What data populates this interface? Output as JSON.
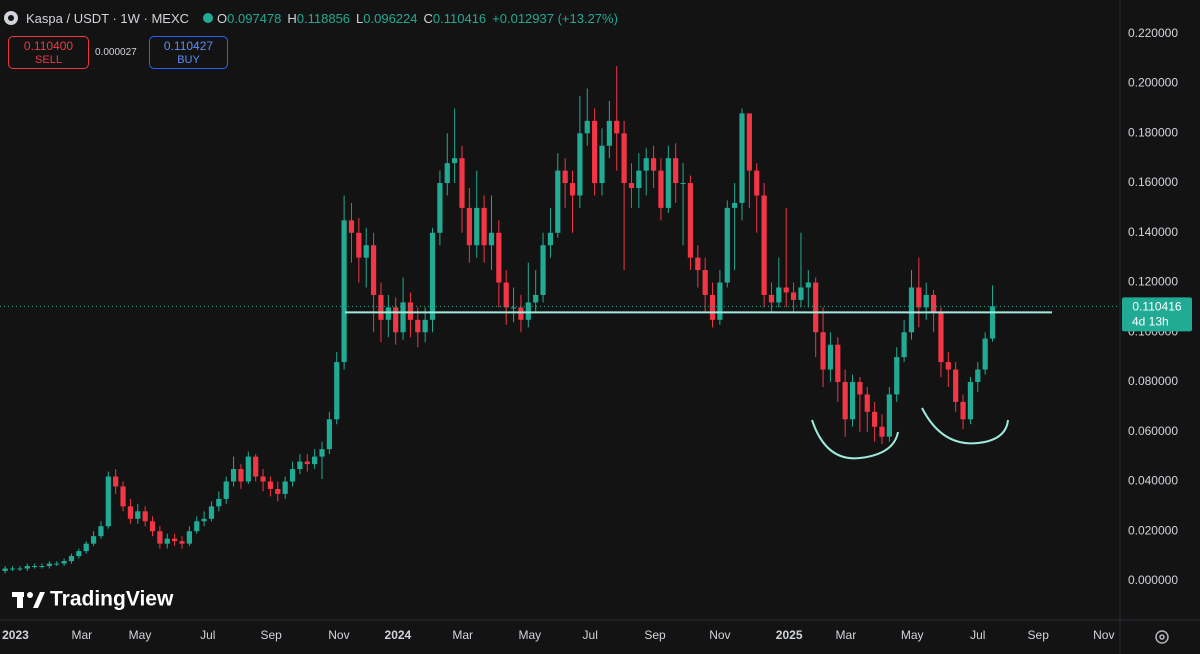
{
  "header": {
    "symbol": "Kaspa / USDT · 1W · MEXC",
    "o_label": "O",
    "h_label": "H",
    "l_label": "L",
    "c_label": "C",
    "change": "+0.012937 (+13.27%)"
  },
  "trade": {
    "sell_price": "0.110400",
    "sell_label": "SELL",
    "spread": "0.000027",
    "buy_price": "0.110427",
    "buy_label": "BUY"
  },
  "countdown": "4d 13h",
  "watermark": "TradingView",
  "chart_data": {
    "type": "candlestick",
    "up_color": "#22ab94",
    "down_color": "#f23645",
    "grid": false,
    "support_level": 0.108,
    "ylim": [
      -0.0157,
      0.2336
    ],
    "yticks": [
      {
        "value": 0,
        "label": "0.000000"
      },
      {
        "value": 0.02,
        "label": "0.020000"
      },
      {
        "value": 0.04,
        "label": "0.040000"
      },
      {
        "value": 0.06,
        "label": "0.060000"
      },
      {
        "value": 0.08,
        "label": "0.080000"
      },
      {
        "value": 0.1,
        "label": "0.100000"
      },
      {
        "value": 0.12,
        "label": "0.120000"
      },
      {
        "value": 0.14,
        "label": "0.140000"
      },
      {
        "value": 0.16,
        "label": "0.160000"
      },
      {
        "value": 0.18,
        "label": "0.180000"
      },
      {
        "value": 0.2,
        "label": "0.200000"
      },
      {
        "value": 0.22,
        "label": "0.220000"
      }
    ],
    "xlim": [
      -0.7,
      151.3
    ],
    "xticks": [
      {
        "value": 1.4,
        "label": "2023"
      },
      {
        "value": 10.4,
        "label": "Mar"
      },
      {
        "value": 18.3,
        "label": "May"
      },
      {
        "value": 27.5,
        "label": "Jul"
      },
      {
        "value": 36.1,
        "label": "Sep"
      },
      {
        "value": 45.3,
        "label": "Nov"
      },
      {
        "value": 53.3,
        "label": "2024"
      },
      {
        "value": 62.1,
        "label": "Mar"
      },
      {
        "value": 71.2,
        "label": "May"
      },
      {
        "value": 79.4,
        "label": "Jul"
      },
      {
        "value": 88.2,
        "label": "Sep"
      },
      {
        "value": 97.0,
        "label": "Nov"
      },
      {
        "value": 106.4,
        "label": "2025"
      },
      {
        "value": 114.1,
        "label": "Mar"
      },
      {
        "value": 123.1,
        "label": "May"
      },
      {
        "value": 132.0,
        "label": "Jul"
      },
      {
        "value": 140.2,
        "label": "Sep"
      },
      {
        "value": 149.1,
        "label": "Nov"
      }
    ],
    "open": [
      0.004,
      0.005,
      0.005,
      0.005,
      0.006,
      0.006,
      0.006,
      0.007,
      0.007,
      0.008,
      0.01,
      0.012,
      0.015,
      0.018,
      0.022,
      0.042,
      0.038,
      0.03,
      0.025,
      0.028,
      0.024,
      0.02,
      0.015,
      0.017,
      0.016,
      0.015,
      0.02,
      0.024,
      0.025,
      0.03,
      0.033,
      0.04,
      0.045,
      0.04,
      0.05,
      0.042,
      0.04,
      0.037,
      0.035,
      0.04,
      0.045,
      0.048,
      0.047,
      0.05,
      0.053,
      0.065,
      0.088,
      0.145,
      0.14,
      0.13,
      0.135,
      0.115,
      0.105,
      0.11,
      0.1,
      0.112,
      0.105,
      0.1,
      0.105,
      0.14,
      0.16,
      0.168,
      0.17,
      0.15,
      0.135,
      0.15,
      0.135,
      0.14,
      0.12,
      0.11,
      0.11,
      0.105,
      0.112,
      0.115,
      0.135,
      0.14,
      0.165,
      0.16,
      0.155,
      0.18,
      0.185,
      0.16,
      0.175,
      0.185,
      0.18,
      0.16,
      0.158,
      0.165,
      0.17,
      0.165,
      0.15,
      0.17,
      0.16,
      0.16,
      0.13,
      0.125,
      0.115,
      0.105,
      0.12,
      0.15,
      0.152,
      0.188,
      0.165,
      0.155,
      0.115,
      0.112,
      0.118,
      0.116,
      0.113,
      0.118,
      0.12,
      0.1,
      0.085,
      0.095,
      0.08,
      0.065,
      0.08,
      0.075,
      0.068,
      0.062,
      0.058,
      0.075,
      0.09,
      0.1,
      0.118,
      0.11,
      0.115,
      0.108,
      0.088,
      0.085,
      0.072,
      0.065,
      0.08,
      0.085,
      0.097478
    ],
    "high": [
      0.006,
      0.006,
      0.006,
      0.007,
      0.007,
      0.007,
      0.008,
      0.008,
      0.009,
      0.011,
      0.013,
      0.016,
      0.02,
      0.024,
      0.044,
      0.045,
      0.04,
      0.033,
      0.031,
      0.03,
      0.026,
      0.022,
      0.019,
      0.019,
      0.018,
      0.022,
      0.026,
      0.028,
      0.032,
      0.036,
      0.042,
      0.05,
      0.047,
      0.052,
      0.051,
      0.045,
      0.042,
      0.04,
      0.042,
      0.048,
      0.051,
      0.051,
      0.053,
      0.056,
      0.068,
      0.092,
      0.155,
      0.152,
      0.146,
      0.142,
      0.14,
      0.12,
      0.115,
      0.114,
      0.122,
      0.116,
      0.11,
      0.11,
      0.142,
      0.165,
      0.18,
      0.19,
      0.175,
      0.158,
      0.165,
      0.155,
      0.155,
      0.145,
      0.125,
      0.118,
      0.115,
      0.128,
      0.125,
      0.14,
      0.15,
      0.172,
      0.17,
      0.165,
      0.195,
      0.198,
      0.19,
      0.182,
      0.193,
      0.207,
      0.185,
      0.168,
      0.172,
      0.174,
      0.175,
      0.17,
      0.175,
      0.176,
      0.168,
      0.163,
      0.135,
      0.13,
      0.12,
      0.125,
      0.153,
      0.16,
      0.19,
      0.188,
      0.168,
      0.16,
      0.12,
      0.13,
      0.15,
      0.12,
      0.14,
      0.125,
      0.122,
      0.11,
      0.1,
      0.098,
      0.085,
      0.083,
      0.082,
      0.078,
      0.072,
      0.067,
      0.078,
      0.094,
      0.105,
      0.125,
      0.13,
      0.12,
      0.117,
      0.11,
      0.092,
      0.088,
      0.075,
      0.082,
      0.088,
      0.1,
      0.118856
    ],
    "low": [
      0.003,
      0.004,
      0.004,
      0.004,
      0.005,
      0.005,
      0.005,
      0.006,
      0.006,
      0.007,
      0.009,
      0.011,
      0.014,
      0.017,
      0.021,
      0.035,
      0.028,
      0.023,
      0.023,
      0.022,
      0.018,
      0.013,
      0.013,
      0.014,
      0.013,
      0.014,
      0.019,
      0.022,
      0.024,
      0.028,
      0.031,
      0.038,
      0.037,
      0.039,
      0.04,
      0.036,
      0.034,
      0.032,
      0.033,
      0.038,
      0.043,
      0.044,
      0.045,
      0.041,
      0.051,
      0.063,
      0.085,
      0.128,
      0.12,
      0.118,
      0.1,
      0.096,
      0.098,
      0.095,
      0.097,
      0.098,
      0.094,
      0.096,
      0.1,
      0.135,
      0.155,
      0.16,
      0.14,
      0.128,
      0.13,
      0.128,
      0.125,
      0.11,
      0.103,
      0.104,
      0.1,
      0.102,
      0.108,
      0.112,
      0.13,
      0.138,
      0.15,
      0.14,
      0.15,
      0.175,
      0.155,
      0.155,
      0.17,
      0.165,
      0.125,
      0.15,
      0.15,
      0.155,
      0.158,
      0.145,
      0.148,
      0.152,
      0.135,
      0.125,
      0.118,
      0.108,
      0.102,
      0.103,
      0.118,
      0.125,
      0.145,
      0.15,
      0.14,
      0.11,
      0.108,
      0.11,
      0.11,
      0.108,
      0.11,
      0.11,
      0.09,
      0.078,
      0.08,
      0.072,
      0.058,
      0.062,
      0.06,
      0.06,
      0.056,
      0.055,
      0.056,
      0.072,
      0.088,
      0.097,
      0.102,
      0.105,
      0.1,
      0.082,
      0.078,
      0.068,
      0.061,
      0.063,
      0.076,
      0.083,
      0.096224
    ],
    "close": [
      0.005,
      0.005,
      0.005,
      0.006,
      0.006,
      0.006,
      0.007,
      0.007,
      0.008,
      0.01,
      0.012,
      0.015,
      0.018,
      0.022,
      0.042,
      0.038,
      0.03,
      0.025,
      0.028,
      0.024,
      0.02,
      0.015,
      0.017,
      0.016,
      0.015,
      0.02,
      0.024,
      0.025,
      0.03,
      0.033,
      0.04,
      0.045,
      0.04,
      0.05,
      0.042,
      0.04,
      0.037,
      0.035,
      0.04,
      0.045,
      0.048,
      0.047,
      0.05,
      0.053,
      0.065,
      0.088,
      0.145,
      0.14,
      0.13,
      0.135,
      0.115,
      0.105,
      0.11,
      0.1,
      0.112,
      0.105,
      0.1,
      0.105,
      0.14,
      0.16,
      0.168,
      0.17,
      0.15,
      0.135,
      0.15,
      0.135,
      0.14,
      0.12,
      0.11,
      0.11,
      0.105,
      0.112,
      0.115,
      0.135,
      0.14,
      0.165,
      0.16,
      0.155,
      0.18,
      0.185,
      0.16,
      0.175,
      0.185,
      0.18,
      0.16,
      0.158,
      0.165,
      0.17,
      0.165,
      0.15,
      0.17,
      0.16,
      0.16,
      0.13,
      0.125,
      0.115,
      0.105,
      0.12,
      0.15,
      0.152,
      0.188,
      0.165,
      0.155,
      0.115,
      0.112,
      0.118,
      0.116,
      0.113,
      0.118,
      0.12,
      0.1,
      0.085,
      0.095,
      0.08,
      0.065,
      0.08,
      0.075,
      0.068,
      0.062,
      0.058,
      0.075,
      0.09,
      0.1,
      0.118,
      0.11,
      0.115,
      0.108,
      0.088,
      0.085,
      0.072,
      0.065,
      0.08,
      0.085,
      0.097478,
      0.110416
    ]
  }
}
